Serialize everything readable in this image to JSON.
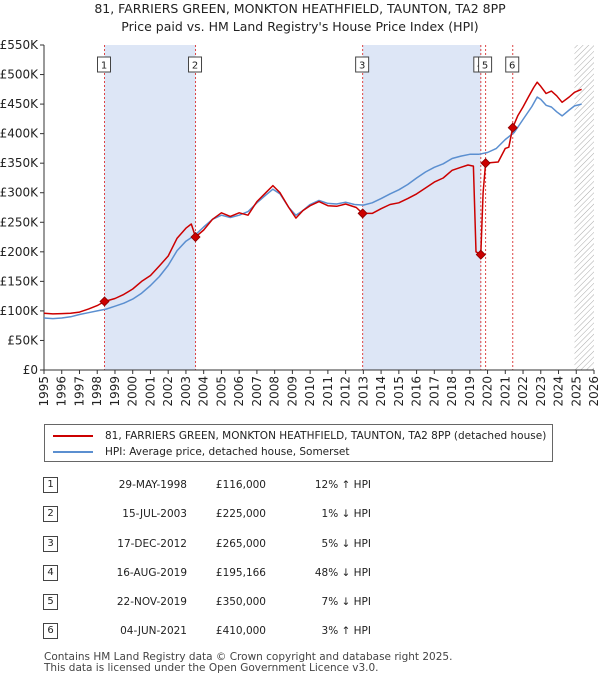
{
  "title": {
    "line1": "81, FARRIERS GREEN, MONKTON HEATHFIELD, TAUNTON, TA2 8PP",
    "line2": "Price paid vs. HM Land Registry's House Price Index (HPI)"
  },
  "legend": {
    "red_label": "81, FARRIERS GREEN, MONKTON HEATHFIELD, TAUNTON, TA2 8PP (detached house)",
    "blue_label": "HPI: Average price, detached house, Somerset"
  },
  "colors": {
    "red": "#cc0000",
    "blue": "#5b8fd0",
    "band": "#dde6f6",
    "hatch": "#aaaaaa"
  },
  "chart_data": {
    "type": "line",
    "title": "Price paid vs. HM Land Registry's House Price Index (HPI)",
    "xlabel": "",
    "ylabel": "",
    "xlim": [
      1995,
      2026
    ],
    "ylim": [
      0,
      550000
    ],
    "x_ticks": [
      "1995",
      "1996",
      "1997",
      "1998",
      "1999",
      "2000",
      "2001",
      "2002",
      "2003",
      "2004",
      "2005",
      "2006",
      "2007",
      "2008",
      "2009",
      "2010",
      "2011",
      "2012",
      "2013",
      "2014",
      "2015",
      "2016",
      "2017",
      "2018",
      "2019",
      "2020",
      "2021",
      "2022",
      "2023",
      "2024",
      "2025",
      "2026"
    ],
    "y_ticks": [
      {
        "value": 0,
        "label": "£0"
      },
      {
        "value": 50000,
        "label": "£50K"
      },
      {
        "value": 100000,
        "label": "£100K"
      },
      {
        "value": 150000,
        "label": "£150K"
      },
      {
        "value": 200000,
        "label": "£200K"
      },
      {
        "value": 250000,
        "label": "£250K"
      },
      {
        "value": 300000,
        "label": "£300K"
      },
      {
        "value": 350000,
        "label": "£350K"
      },
      {
        "value": 400000,
        "label": "£400K"
      },
      {
        "value": 450000,
        "label": "£450K"
      },
      {
        "value": 500000,
        "label": "£500K"
      },
      {
        "value": 550000,
        "label": "£550K"
      }
    ],
    "grid": false,
    "shaded_bands": [
      [
        1998.41,
        2003.54
      ],
      [
        2012.96,
        2019.62
      ]
    ],
    "hatched_from": 2024.9,
    "series": [
      {
        "name": "81, FARRIERS GREEN, MONKTON HEATHFIELD, TAUNTON, TA2 8PP (detached house)",
        "color": "#cc0000",
        "points": [
          [
            1995.0,
            96000
          ],
          [
            1995.5,
            95000
          ],
          [
            1996.0,
            95500
          ],
          [
            1996.5,
            96000
          ],
          [
            1997.0,
            98000
          ],
          [
            1997.5,
            103000
          ],
          [
            1998.0,
            109000
          ],
          [
            1998.41,
            116000
          ],
          [
            1999.0,
            121000
          ],
          [
            1999.5,
            128000
          ],
          [
            2000.0,
            137000
          ],
          [
            2000.5,
            150000
          ],
          [
            2001.0,
            160000
          ],
          [
            2001.5,
            176000
          ],
          [
            2002.0,
            193000
          ],
          [
            2002.5,
            223000
          ],
          [
            2003.0,
            240000
          ],
          [
            2003.3,
            247000
          ],
          [
            2003.54,
            225000
          ],
          [
            2004.0,
            237000
          ],
          [
            2004.5,
            255000
          ],
          [
            2005.0,
            266000
          ],
          [
            2005.5,
            260000
          ],
          [
            2006.0,
            266000
          ],
          [
            2006.5,
            262000
          ],
          [
            2007.0,
            285000
          ],
          [
            2007.5,
            300000
          ],
          [
            2007.9,
            312000
          ],
          [
            2008.3,
            300000
          ],
          [
            2008.8,
            275000
          ],
          [
            2009.2,
            257000
          ],
          [
            2009.6,
            270000
          ],
          [
            2010.0,
            278000
          ],
          [
            2010.5,
            285000
          ],
          [
            2011.0,
            278000
          ],
          [
            2011.5,
            277000
          ],
          [
            2012.0,
            281000
          ],
          [
            2012.6,
            275000
          ],
          [
            2012.96,
            265000
          ],
          [
            2013.5,
            265000
          ],
          [
            2014.0,
            273000
          ],
          [
            2014.5,
            280000
          ],
          [
            2015.0,
            283000
          ],
          [
            2015.5,
            290000
          ],
          [
            2016.0,
            298000
          ],
          [
            2016.5,
            308000
          ],
          [
            2017.0,
            318000
          ],
          [
            2017.5,
            325000
          ],
          [
            2018.0,
            338000
          ],
          [
            2018.5,
            343000
          ],
          [
            2018.9,
            347000
          ],
          [
            2019.2,
            345000
          ],
          [
            2019.35,
            200000
          ],
          [
            2019.62,
            195166
          ],
          [
            2019.75,
            300000
          ],
          [
            2019.89,
            350000
          ],
          [
            2020.2,
            351000
          ],
          [
            2020.6,
            352000
          ],
          [
            2021.0,
            375000
          ],
          [
            2021.2,
            377000
          ],
          [
            2021.42,
            410000
          ],
          [
            2021.7,
            430000
          ],
          [
            2022.0,
            445000
          ],
          [
            2022.3,
            462000
          ],
          [
            2022.6,
            478000
          ],
          [
            2022.8,
            487000
          ],
          [
            2023.0,
            480000
          ],
          [
            2023.3,
            468000
          ],
          [
            2023.6,
            472000
          ],
          [
            2023.9,
            464000
          ],
          [
            2024.2,
            453000
          ],
          [
            2024.6,
            462000
          ],
          [
            2024.9,
            470000
          ],
          [
            2025.3,
            475000
          ]
        ]
      },
      {
        "name": "HPI: Average price, detached house, Somerset",
        "color": "#5b8fd0",
        "points": [
          [
            1995.0,
            88000
          ],
          [
            1995.5,
            87000
          ],
          [
            1996.0,
            88000
          ],
          [
            1996.5,
            90000
          ],
          [
            1997.0,
            94000
          ],
          [
            1997.5,
            97000
          ],
          [
            1998.0,
            100000
          ],
          [
            1998.5,
            103000
          ],
          [
            1999.0,
            108000
          ],
          [
            1999.5,
            113000
          ],
          [
            2000.0,
            120000
          ],
          [
            2000.5,
            130000
          ],
          [
            2001.0,
            143000
          ],
          [
            2001.5,
            158000
          ],
          [
            2002.0,
            177000
          ],
          [
            2002.5,
            202000
          ],
          [
            2003.0,
            218000
          ],
          [
            2003.5,
            228000
          ],
          [
            2004.0,
            242000
          ],
          [
            2004.5,
            255000
          ],
          [
            2005.0,
            262000
          ],
          [
            2005.5,
            258000
          ],
          [
            2006.0,
            262000
          ],
          [
            2006.5,
            268000
          ],
          [
            2007.0,
            283000
          ],
          [
            2007.5,
            296000
          ],
          [
            2007.9,
            306000
          ],
          [
            2008.3,
            298000
          ],
          [
            2008.8,
            275000
          ],
          [
            2009.2,
            262000
          ],
          [
            2009.6,
            270000
          ],
          [
            2010.0,
            280000
          ],
          [
            2010.5,
            287000
          ],
          [
            2011.0,
            282000
          ],
          [
            2011.5,
            281000
          ],
          [
            2012.0,
            284000
          ],
          [
            2012.5,
            280000
          ],
          [
            2013.0,
            279000
          ],
          [
            2013.5,
            283000
          ],
          [
            2014.0,
            290000
          ],
          [
            2014.5,
            298000
          ],
          [
            2015.0,
            305000
          ],
          [
            2015.5,
            314000
          ],
          [
            2016.0,
            325000
          ],
          [
            2016.5,
            335000
          ],
          [
            2017.0,
            343000
          ],
          [
            2017.5,
            349000
          ],
          [
            2018.0,
            358000
          ],
          [
            2018.5,
            362000
          ],
          [
            2019.0,
            365000
          ],
          [
            2019.5,
            365000
          ],
          [
            2020.0,
            368000
          ],
          [
            2020.5,
            375000
          ],
          [
            2021.0,
            390000
          ],
          [
            2021.5,
            402000
          ],
          [
            2022.0,
            424000
          ],
          [
            2022.5,
            446000
          ],
          [
            2022.8,
            462000
          ],
          [
            2023.0,
            458000
          ],
          [
            2023.3,
            448000
          ],
          [
            2023.6,
            445000
          ],
          [
            2023.9,
            437000
          ],
          [
            2024.2,
            430000
          ],
          [
            2024.6,
            440000
          ],
          [
            2024.9,
            447000
          ],
          [
            2025.3,
            450000
          ]
        ]
      }
    ],
    "sales": [
      {
        "num": "1",
        "x": 1998.41,
        "price": 116000
      },
      {
        "num": "2",
        "x": 2003.54,
        "price": 225000
      },
      {
        "num": "3",
        "x": 2012.96,
        "price": 265000
      },
      {
        "num": "4",
        "x": 2019.62,
        "price": 195166
      },
      {
        "num": "5",
        "x": 2019.89,
        "price": 350000
      },
      {
        "num": "6",
        "x": 2021.42,
        "price": 410000
      }
    ]
  },
  "table": [
    {
      "num": "1",
      "date": "29-MAY-1998",
      "price": "£116,000",
      "hpi": "12% ↑ HPI"
    },
    {
      "num": "2",
      "date": "15-JUL-2003",
      "price": "£225,000",
      "hpi": "1% ↓ HPI"
    },
    {
      "num": "3",
      "date": "17-DEC-2012",
      "price": "£265,000",
      "hpi": "5% ↓ HPI"
    },
    {
      "num": "4",
      "date": "16-AUG-2019",
      "price": "£195,166",
      "hpi": "48% ↓ HPI"
    },
    {
      "num": "5",
      "date": "22-NOV-2019",
      "price": "£350,000",
      "hpi": "7% ↓ HPI"
    },
    {
      "num": "6",
      "date": "04-JUN-2021",
      "price": "£410,000",
      "hpi": "3% ↑ HPI"
    }
  ],
  "footer": {
    "line1": "Contains HM Land Registry data © Crown copyright and database right 2025.",
    "line2": "This data is licensed under the Open Government Licence v3.0."
  }
}
